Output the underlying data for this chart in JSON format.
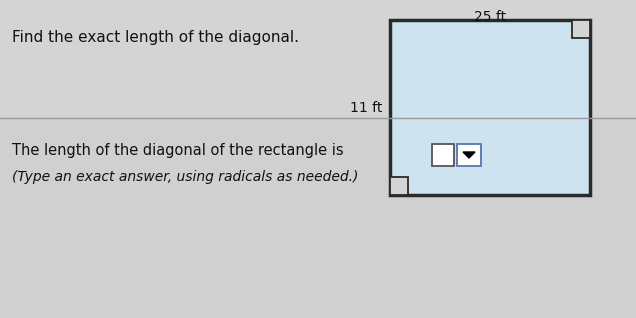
{
  "title_text": "Find the exact length of the diagonal.",
  "title_fontsize": 11,
  "width_label": "25 ft",
  "height_label": "11 ft",
  "bottom_text_line1": "The length of the diagonal of the rectangle is",
  "bottom_text_line2": "(Type an exact answer, using radicals as needed.)",
  "rect_fill": "#cde4f0",
  "rect_edge": "#2a2a2a",
  "bg_color_top": "#d4d4d4",
  "bg_color_bottom": "#d0d0d0",
  "divider_color": "#aaaaaa",
  "text_color": "#111111"
}
